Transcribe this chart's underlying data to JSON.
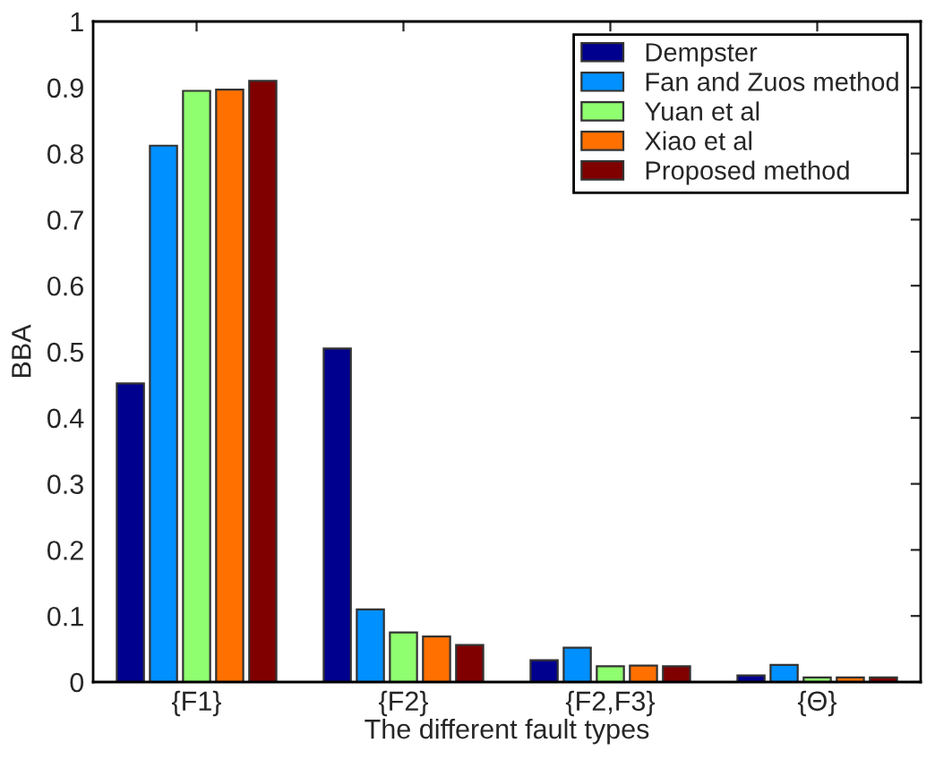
{
  "chart_data": {
    "type": "bar",
    "xlabel": "The different fault types",
    "ylabel": "BBA",
    "categories": [
      "{F1}",
      "{F2}",
      "{F2,F3}",
      "{Θ}"
    ],
    "series": [
      {
        "name": "Dempster",
        "color": "#00008f",
        "values": [
          0.452,
          0.505,
          0.033,
          0.01
        ]
      },
      {
        "name": "Fan and Zuos method",
        "color": "#0090ff",
        "values": [
          0.812,
          0.11,
          0.052,
          0.026
        ]
      },
      {
        "name": "Yuan et al",
        "color": "#8fff6f",
        "values": [
          0.895,
          0.075,
          0.024,
          0.007
        ]
      },
      {
        "name": "Xiao et al",
        "color": "#ff7000",
        "values": [
          0.897,
          0.069,
          0.025,
          0.007
        ]
      },
      {
        "name": "Proposed method",
        "color": "#800000",
        "values": [
          0.91,
          0.056,
          0.024,
          0.007
        ]
      }
    ],
    "ylim": [
      0,
      1
    ],
    "yticks": [
      0,
      0.1,
      0.2,
      0.3,
      0.4,
      0.5,
      0.6,
      0.7,
      0.8,
      0.9,
      1
    ],
    "grid": false,
    "legend": "top right"
  }
}
